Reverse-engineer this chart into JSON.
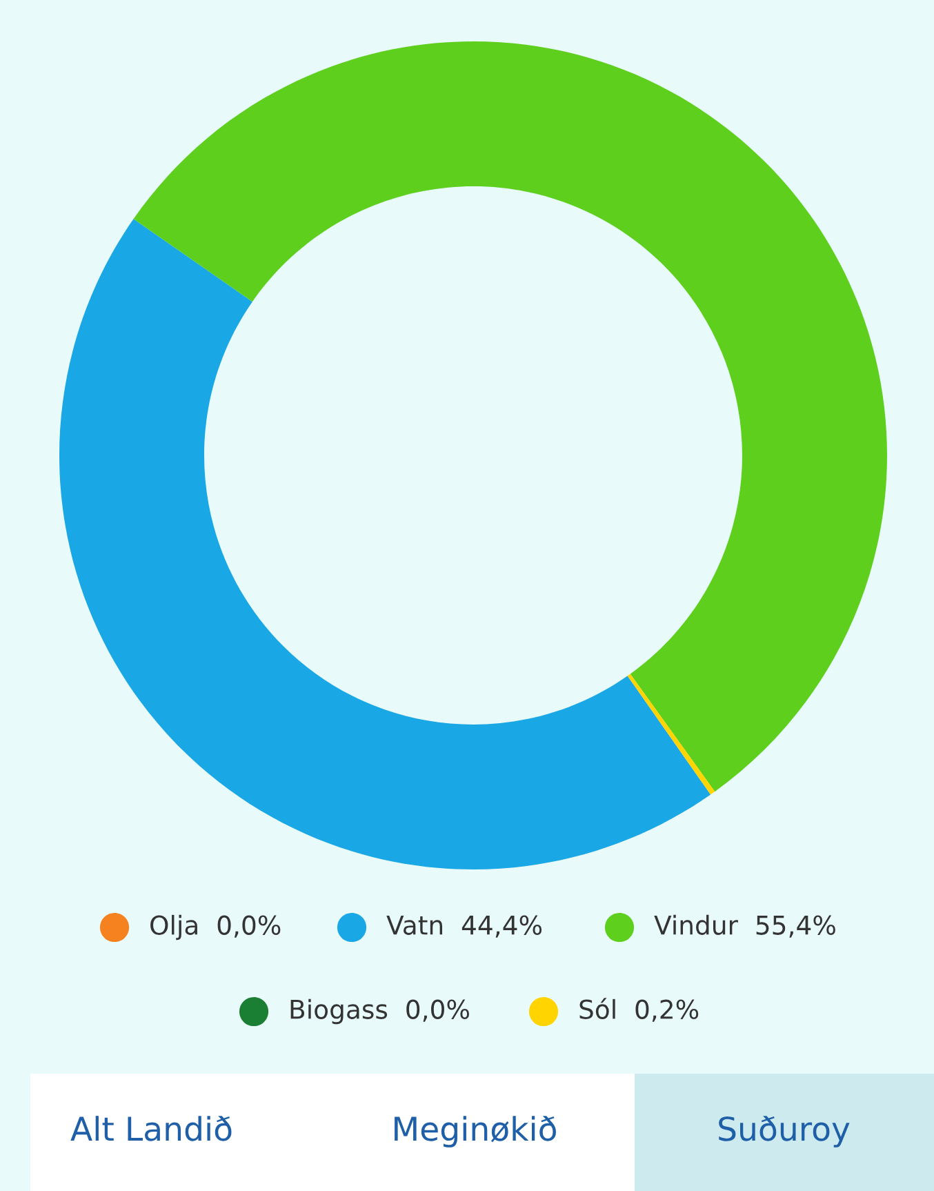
{
  "chart_data": {
    "type": "donut",
    "categories": [
      "Olja",
      "Vatn",
      "Vindur",
      "Biogass",
      "Sól"
    ],
    "values": [
      0.0,
      44.4,
      55.4,
      0.0,
      0.2
    ],
    "value_labels": [
      "0,0%",
      "44,4%",
      "55,4%",
      "0,0%",
      "0,2%"
    ],
    "colors": [
      "#f5821f",
      "#1aa7e6",
      "#5fcf1e",
      "#1a7f33",
      "#ffd400"
    ],
    "legend": "bottom",
    "annotations": [
      "Alt Landið",
      "Meginøkið",
      "Suðuroy"
    ]
  }
}
